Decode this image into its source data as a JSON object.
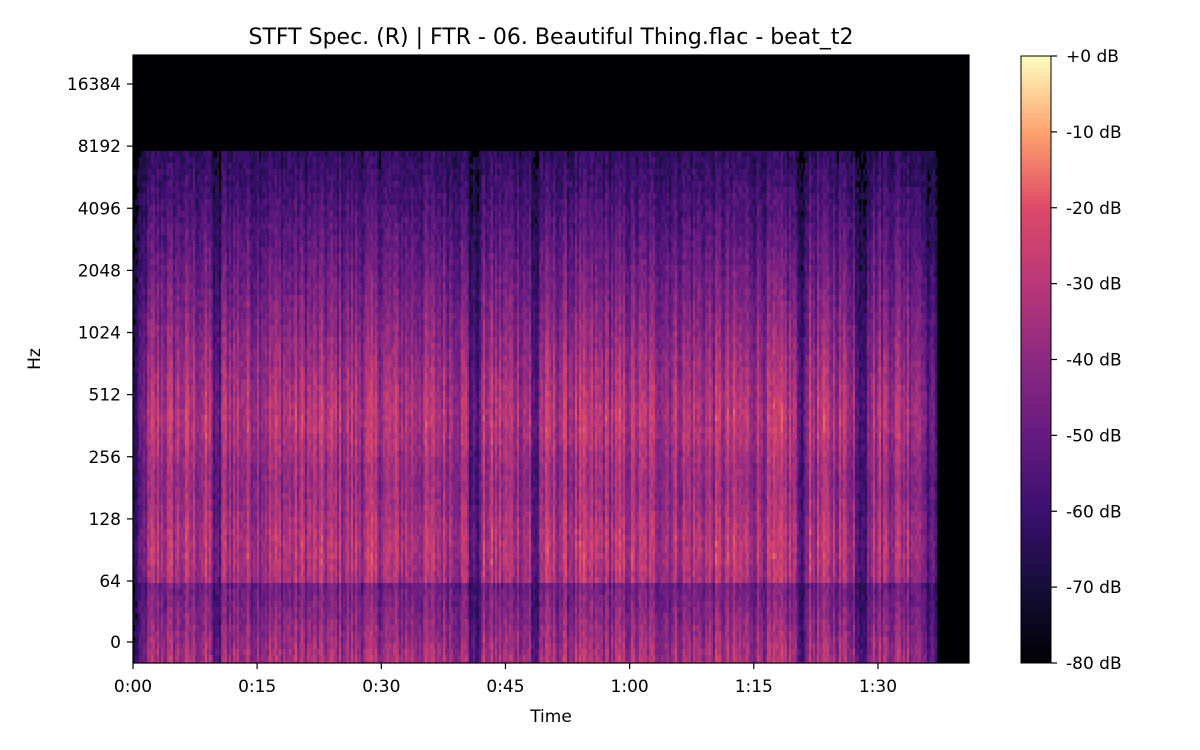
{
  "chart_data": {
    "type": "heatmap",
    "title": "STFT Spec. (R) | FTR - 06. Beautiful Thing.flac - beat_t2",
    "xlabel": "Time",
    "ylabel": "Hz",
    "x_ticks": [
      "0:00",
      "0:15",
      "0:30",
      "0:45",
      "1:00",
      "1:15",
      "1:30"
    ],
    "x_tick_seconds": [
      0,
      15,
      30,
      45,
      60,
      75,
      90
    ],
    "x_range_seconds": [
      0,
      101
    ],
    "y_scale": "log2",
    "y_ticks": [
      "0",
      "64",
      "128",
      "256",
      "512",
      "1024",
      "2048",
      "4096",
      "8192",
      "16384"
    ],
    "y_tick_hz": [
      0,
      64,
      128,
      256,
      512,
      1024,
      2048,
      4096,
      8192,
      16384
    ],
    "audio_end_seconds": 97,
    "colormap": "magma",
    "colorbar": {
      "ticks": [
        "+0 dB",
        "-10 dB",
        "-20 dB",
        "-30 dB",
        "-40 dB",
        "-50 dB",
        "-60 dB",
        "-70 dB",
        "-80 dB"
      ],
      "tick_db": [
        0,
        -10,
        -20,
        -30,
        -40,
        -50,
        -60,
        -70,
        -80
      ],
      "range_db": [
        -80,
        0
      ]
    },
    "quiet_sections_seconds": [
      [
        9.5,
        10.5
      ],
      [
        40.5,
        42
      ],
      [
        48,
        49
      ],
      [
        80,
        81
      ],
      [
        87,
        88.5
      ]
    ]
  }
}
